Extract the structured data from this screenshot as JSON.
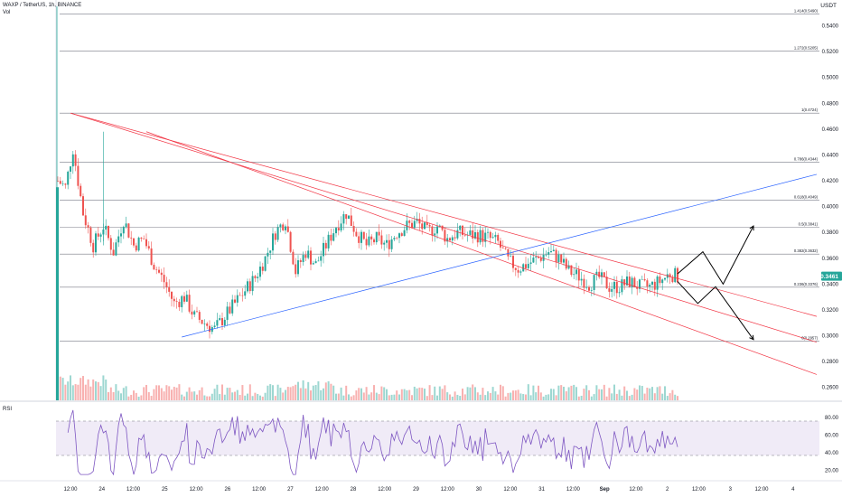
{
  "header": {
    "symbol_line": "WAXP / TetherUS, 1h, BINANCE",
    "vol_label": "Vol"
  },
  "rsi_panel": {
    "label": "RSI"
  },
  "price_axis": {
    "unit": "USDT",
    "ticks": [
      "0.5400",
      "0.5200",
      "0.5000",
      "0.4800",
      "0.4600",
      "0.4400",
      "0.4200",
      "0.4000",
      "0.3800",
      "0.3600",
      "0.3400",
      "0.3200",
      "0.3000",
      "0.2800",
      "0.2600"
    ],
    "current_price": "0.3461"
  },
  "rsi_axis": {
    "ticks": [
      "80.00",
      "60.00",
      "40.00",
      "20.00"
    ]
  },
  "time_axis": {
    "ticks": [
      "12:00",
      "24",
      "12:00",
      "25",
      "12:00",
      "26",
      "12:00",
      "27",
      "12:00",
      "28",
      "12:00",
      "29",
      "12:00",
      "30",
      "12:00",
      "31",
      "12:00",
      "Sep",
      "12:00",
      "2",
      "12:00",
      "3",
      "12:00",
      "4"
    ]
  },
  "fib_levels": [
    {
      "label": "1.414(0.5490)",
      "price": 0.549
    },
    {
      "label": "1.272(0.5205)",
      "price": 0.5205
    },
    {
      "label": "1(0.4724)",
      "price": 0.4724
    },
    {
      "label": "0.786(0.4344)",
      "price": 0.4344
    },
    {
      "label": "0.618(0.4049)",
      "price": 0.4049
    },
    {
      "label": "0.5(0.3841)",
      "price": 0.3841
    },
    {
      "label": "0.382(0.3632)",
      "price": 0.3632
    },
    {
      "label": "0.236(0.3376)",
      "price": 0.3376
    },
    {
      "label": "0(0.2957)",
      "price": 0.2957
    }
  ],
  "colors": {
    "up": "#26a69a",
    "down": "#ef5350",
    "trendline_red": "#f23645",
    "trendline_blue": "#2962ff",
    "rsi_line": "#7e57c2",
    "rsi_band": "#ede7f6",
    "fib": "#787b86",
    "current_price_bg": "#26a69a"
  },
  "chart_data": {
    "type": "candlestick",
    "symbol": "WAXP / TetherUS",
    "interval": "1h",
    "exchange": "BINANCE",
    "y_range": [
      0.25,
      0.56
    ],
    "rsi_range": [
      10,
      90
    ],
    "rsi_levels": [
      70,
      30
    ],
    "x_range_index": [
      0,
      300
    ],
    "candles_ohlc": [],
    "trendlines": [
      {
        "color": "red",
        "from": [
          5,
          0.4724
        ],
        "to": [
          300,
          0.315
        ]
      },
      {
        "color": "red",
        "from": [
          35,
          0.458
        ],
        "to": [
          300,
          0.27
        ]
      },
      {
        "color": "red",
        "from": [
          5,
          0.4724
        ],
        "to": [
          300,
          0.295
        ]
      },
      {
        "color": "blue",
        "from": [
          49,
          0.299
        ],
        "to": [
          300,
          0.425
        ]
      }
    ],
    "projection_arrows": [
      {
        "points": [
          [
            245,
            0.348
          ],
          [
            255,
            0.365
          ],
          [
            263,
            0.34
          ],
          [
            275,
            0.385
          ]
        ]
      },
      {
        "points": [
          [
            245,
            0.342
          ],
          [
            253,
            0.325
          ],
          [
            260,
            0.338
          ],
          [
            275,
            0.297
          ]
        ]
      }
    ]
  }
}
